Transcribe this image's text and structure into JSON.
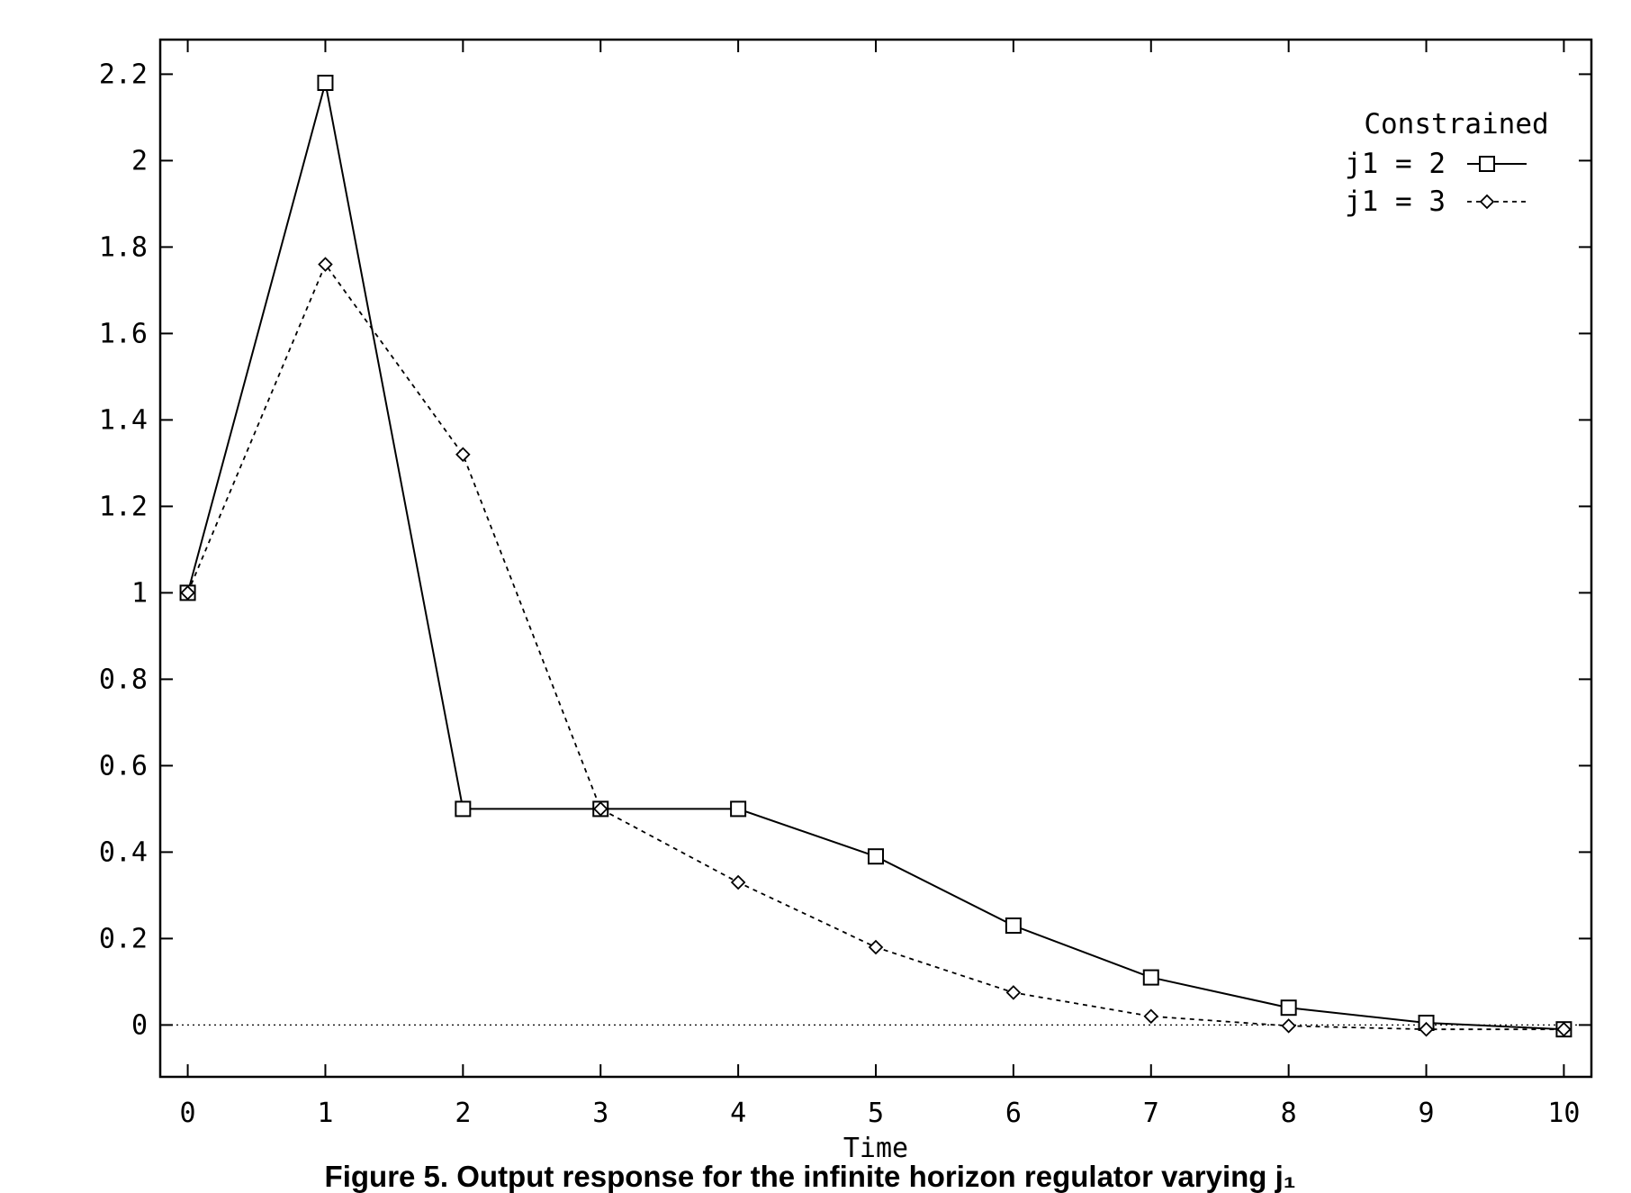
{
  "chart_data": {
    "type": "line",
    "title": "",
    "xlabel": "Time",
    "ylabel": "",
    "xlim": [
      -0.2,
      10.2
    ],
    "ylim": [
      -0.12,
      2.28
    ],
    "xticks": [
      0,
      1,
      2,
      3,
      4,
      5,
      6,
      7,
      8,
      9,
      10
    ],
    "xtick_labels": [
      "0",
      "1",
      "2",
      "3",
      "4",
      "5",
      "6",
      "7",
      "8",
      "9",
      "10"
    ],
    "yticks": [
      0,
      0.2,
      0.4,
      0.6,
      0.8,
      1,
      1.2,
      1.4,
      1.6,
      1.8,
      2,
      2.2
    ],
    "ytick_labels": [
      "0",
      "0.2",
      "0.4",
      "0.6",
      "0.8",
      "1",
      "1.2",
      "1.4",
      "1.6",
      "1.8",
      "2",
      "2.2"
    ],
    "zero_line": true,
    "grid": false,
    "legend": {
      "title": "Constrained",
      "position": "top-right"
    },
    "x": [
      0,
      1,
      2,
      3,
      4,
      5,
      6,
      7,
      8,
      9,
      10
    ],
    "series": [
      {
        "name": "j1 = 2",
        "marker": "square",
        "line": "solid",
        "values": [
          1.0,
          2.18,
          0.5,
          0.5,
          0.5,
          0.39,
          0.23,
          0.11,
          0.04,
          0.005,
          -0.01
        ]
      },
      {
        "name": "j1 = 3",
        "marker": "diamond",
        "line": "dotted",
        "values": [
          1.0,
          1.76,
          1.32,
          0.5,
          0.33,
          0.18,
          0.075,
          0.02,
          -0.002,
          -0.01,
          -0.01
        ]
      }
    ]
  },
  "caption": {
    "text": "Figure 5. Output response for the infinite horizon regulator varying j₁"
  }
}
